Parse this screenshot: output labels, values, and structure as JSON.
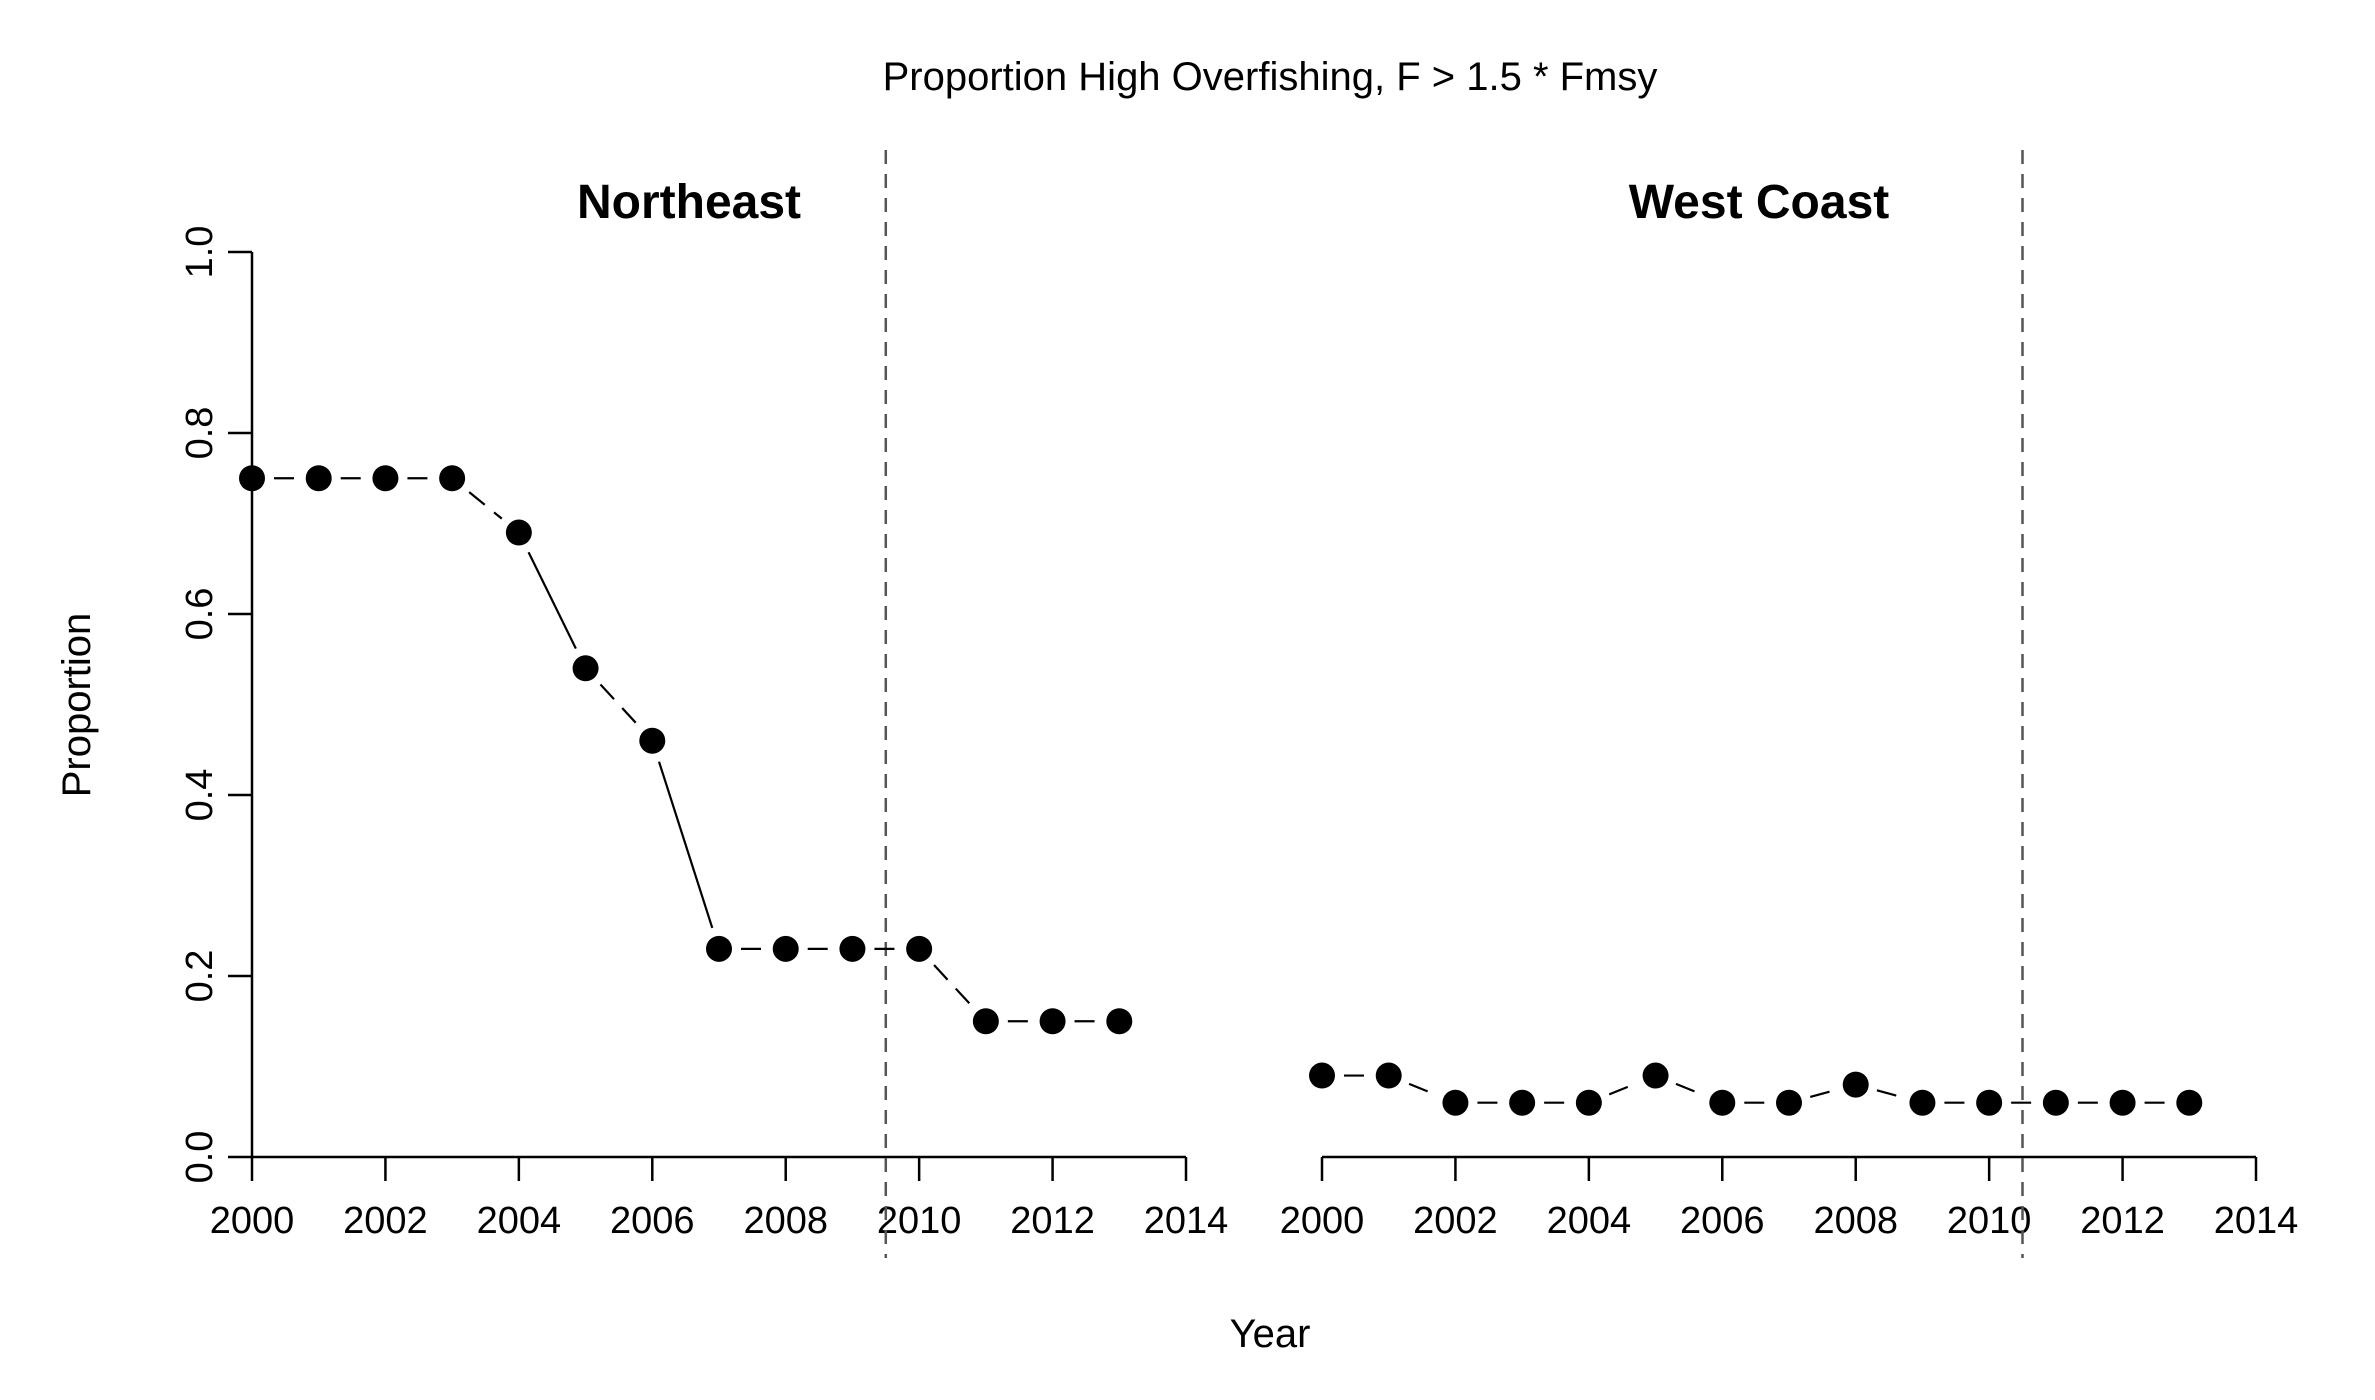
{
  "chart_data": {
    "type": "scatter",
    "title": "Proportion High Overfishing, F > 1.5 * Fmsy",
    "xlabel": "Year",
    "ylabel": "Proportion",
    "x_ticks": [
      "2000",
      "2002",
      "2004",
      "2006",
      "2008",
      "2010",
      "2012",
      "2014"
    ],
    "y_ticks": [
      "0.0",
      "0.2",
      "0.4",
      "0.6",
      "0.8",
      "1.0"
    ],
    "xlim": [
      2000,
      2014
    ],
    "ylim": [
      0,
      1
    ],
    "panels": [
      {
        "name": "Northeast",
        "x": [
          2000,
          2001,
          2002,
          2003,
          2004,
          2005,
          2006,
          2007,
          2008,
          2009,
          2010,
          2011,
          2012,
          2013
        ],
        "y": [
          0.75,
          0.75,
          0.75,
          0.75,
          0.69,
          0.54,
          0.46,
          0.23,
          0.23,
          0.23,
          0.23,
          0.15,
          0.15,
          0.15
        ],
        "reference_line_x": 2009.5
      },
      {
        "name": "West Coast",
        "x": [
          2000,
          2001,
          2002,
          2003,
          2004,
          2005,
          2006,
          2007,
          2008,
          2009,
          2010,
          2011,
          2012,
          2013
        ],
        "y": [
          0.09,
          0.09,
          0.06,
          0.06,
          0.06,
          0.09,
          0.06,
          0.06,
          0.08,
          0.06,
          0.06,
          0.06,
          0.06,
          0.06
        ],
        "reference_line_x": 2010.5
      }
    ],
    "grid": false,
    "line_style": "dashed connector with solid segments on larger steps",
    "marker": "filled circle",
    "colors": {
      "points": "#000000",
      "reference_line": "#555555"
    }
  }
}
